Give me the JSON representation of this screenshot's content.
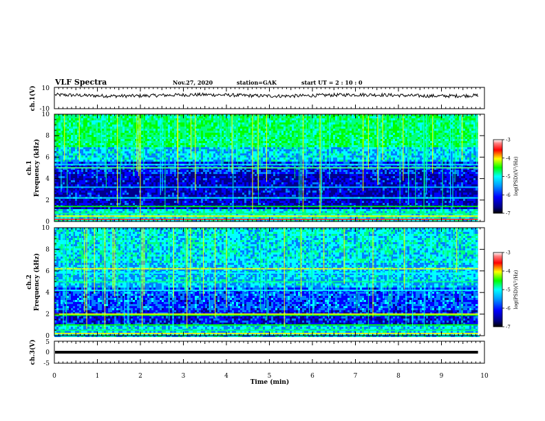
{
  "header": {
    "title": "VLF Spectra",
    "date": "Nov.27, 2020",
    "station": "station=GAK",
    "start": "start UT =  2 : 10 : 0"
  },
  "chart_data": [
    {
      "panel": "ch1-voltage",
      "type": "line",
      "ylabel": "ch.1(V)",
      "ylim": [
        -10,
        10
      ],
      "yticks": [
        "10",
        "-10"
      ],
      "xlim": [
        0,
        10
      ],
      "baseline_value": 2.5
    },
    {
      "panel": "ch1-spectrogram",
      "type": "heatmap",
      "ylabel_line1": "ch.1",
      "ylabel_line2": "Frequency (kHz)",
      "ylim": [
        0,
        10
      ],
      "yticks": [
        "0",
        "2",
        "4",
        "6",
        "8",
        "10"
      ],
      "xlim": [
        0,
        10
      ],
      "colorbar": {
        "label": "log(PSD)(V²/Hz)",
        "range": [
          -7,
          -3
        ],
        "ticks": [
          "-3",
          "-4",
          "-5",
          "-6",
          "-7"
        ]
      }
    },
    {
      "panel": "ch2-spectrogram",
      "type": "heatmap",
      "ylabel_line1": "ch.2",
      "ylabel_line2": "Frequency (kHz)",
      "ylim": [
        0,
        10
      ],
      "yticks": [
        "0",
        "2",
        "4",
        "6",
        "8",
        "10"
      ],
      "xlim": [
        0,
        10
      ],
      "colorbar": {
        "label": "log(PSD)(V²/Hz)",
        "range": [
          -7,
          -3
        ],
        "ticks": [
          "-3",
          "-4",
          "-5",
          "-6",
          "-7"
        ]
      }
    },
    {
      "panel": "ch3-voltage",
      "type": "line",
      "ylabel": "ch.3(V)",
      "ylim": [
        -5,
        5
      ],
      "yticks": [
        "5",
        "0",
        "-5"
      ],
      "xlim": [
        0,
        10
      ],
      "baseline_value": 0
    }
  ],
  "xaxis": {
    "label": "Time (min)",
    "ticks": [
      "0",
      "1",
      "2",
      "3",
      "4",
      "5",
      "6",
      "7",
      "8",
      "9",
      "10"
    ]
  },
  "colors": {
    "scale": [
      "#000080",
      "#0000ff",
      "#0080ff",
      "#00ffff",
      "#00ff80",
      "#00ff00",
      "#ffff00",
      "#ff8000",
      "#ff0000",
      "#ffffff"
    ]
  }
}
